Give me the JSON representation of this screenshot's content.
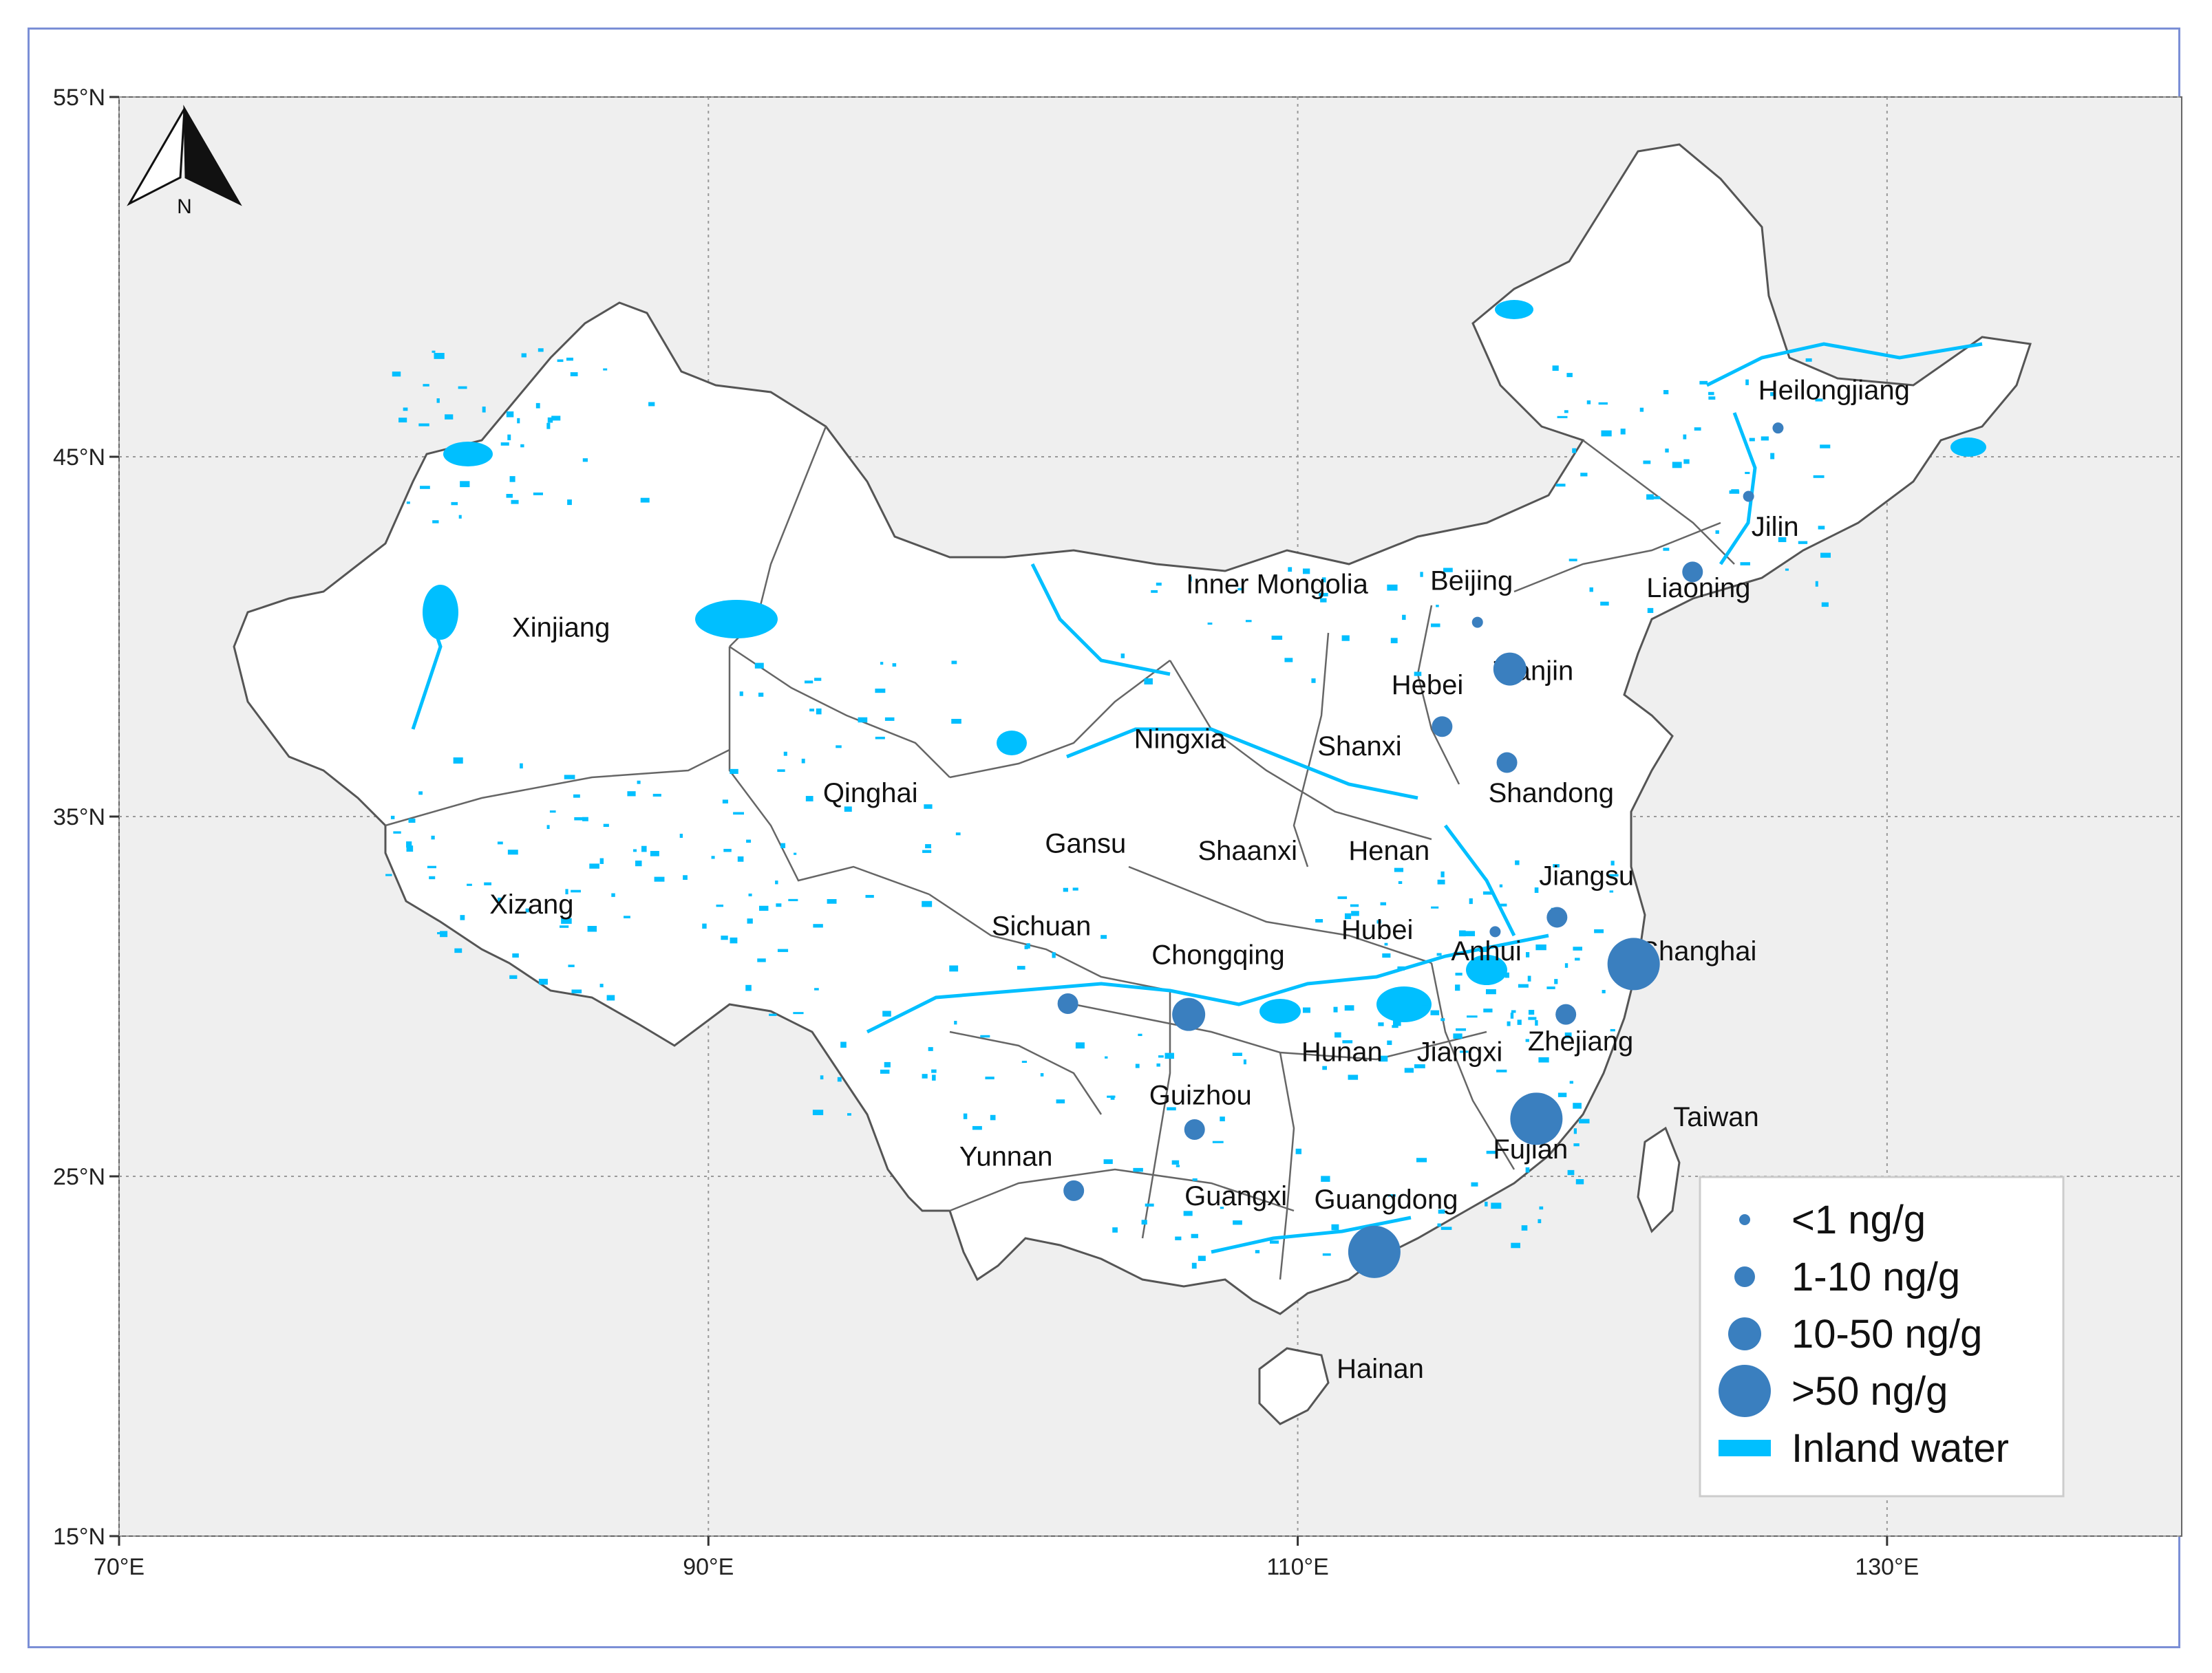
{
  "map": {
    "lon_range": [
      70,
      140
    ],
    "lat_range": [
      15,
      55
    ],
    "lon_ticks": [
      {
        "value": 70,
        "label": "70°E"
      },
      {
        "value": 90,
        "label": "90°E"
      },
      {
        "value": 110,
        "label": "110°E"
      },
      {
        "value": 130,
        "label": "130°E"
      }
    ],
    "lat_ticks": [
      {
        "value": 15,
        "label": "15°N"
      },
      {
        "value": 25,
        "label": "25°N"
      },
      {
        "value": 35,
        "label": "35°N"
      },
      {
        "value": 45,
        "label": "45°N"
      },
      {
        "value": 55,
        "label": "55°N"
      }
    ],
    "north_arrow_label": "N",
    "colors": {
      "background": "#efefef",
      "land": "#ffffff",
      "border": "#555555",
      "water": "#00bfff",
      "marker": "#3a7fbf"
    },
    "provinces": [
      {
        "name": "Xinjiang",
        "lon": 85.0,
        "lat": 40.0
      },
      {
        "name": "Xizang",
        "lon": 84.0,
        "lat": 32.3
      },
      {
        "name": "Qinghai",
        "lon": 95.5,
        "lat": 35.4
      },
      {
        "name": "Inner Mongolia",
        "lon": 109.3,
        "lat": 41.2
      },
      {
        "name": "Gansu",
        "lon": 102.8,
        "lat": 34.0
      },
      {
        "name": "Ningxia",
        "lon": 106.0,
        "lat": 36.9
      },
      {
        "name": "Shaanxi",
        "lon": 108.3,
        "lat": 33.8
      },
      {
        "name": "Shanxi",
        "lon": 112.1,
        "lat": 36.7
      },
      {
        "name": "Henan",
        "lon": 113.1,
        "lat": 33.8
      },
      {
        "name": "Hebei",
        "lon": 114.4,
        "lat": 38.4
      },
      {
        "name": "Beijing",
        "lon": 115.9,
        "lat": 41.3
      },
      {
        "name": "Tianjin",
        "lon": 118.0,
        "lat": 38.8
      },
      {
        "name": "Shandong",
        "lon": 118.6,
        "lat": 35.4
      },
      {
        "name": "Liaoning",
        "lon": 123.6,
        "lat": 41.1
      },
      {
        "name": "Jilin",
        "lon": 126.2,
        "lat": 42.8
      },
      {
        "name": "Heilongjiang",
        "lon": 128.2,
        "lat": 46.6
      },
      {
        "name": "Jiangsu",
        "lon": 119.8,
        "lat": 33.1
      },
      {
        "name": "Shanghai",
        "lon": 123.6,
        "lat": 31.0
      },
      {
        "name": "Anhui",
        "lon": 116.4,
        "lat": 31.0
      },
      {
        "name": "Hubei",
        "lon": 112.7,
        "lat": 31.6
      },
      {
        "name": "Sichuan",
        "lon": 101.3,
        "lat": 31.7
      },
      {
        "name": "Chongqing",
        "lon": 107.3,
        "lat": 30.9
      },
      {
        "name": "Hunan",
        "lon": 111.5,
        "lat": 28.2
      },
      {
        "name": "Jiangxi",
        "lon": 115.5,
        "lat": 28.2
      },
      {
        "name": "Zhejiang",
        "lon": 119.6,
        "lat": 28.5
      },
      {
        "name": "Guizhou",
        "lon": 106.7,
        "lat": 27.0
      },
      {
        "name": "Taiwan",
        "lon": 124.2,
        "lat": 26.4
      },
      {
        "name": "Fujian",
        "lon": 117.9,
        "lat": 25.5
      },
      {
        "name": "Yunnan",
        "lon": 100.1,
        "lat": 25.3
      },
      {
        "name": "Guangxi",
        "lon": 107.9,
        "lat": 24.2
      },
      {
        "name": "Guangdong",
        "lon": 113.0,
        "lat": 24.1
      },
      {
        "name": "Hainan",
        "lon": 112.8,
        "lat": 19.4
      }
    ],
    "sites": [
      {
        "lon": 126.3,
        "lat": 45.8,
        "level": "<1 ng/g"
      },
      {
        "lon": 125.3,
        "lat": 43.9,
        "level": "<1 ng/g"
      },
      {
        "lon": 123.4,
        "lat": 41.8,
        "level": "1-10 ng/g"
      },
      {
        "lon": 116.1,
        "lat": 40.4,
        "level": "<1 ng/g"
      },
      {
        "lon": 117.2,
        "lat": 39.1,
        "level": "10-50 ng/g"
      },
      {
        "lon": 114.9,
        "lat": 37.5,
        "level": "1-10 ng/g"
      },
      {
        "lon": 117.1,
        "lat": 36.5,
        "level": "1-10 ng/g"
      },
      {
        "lon": 118.8,
        "lat": 32.2,
        "level": "1-10 ng/g"
      },
      {
        "lon": 116.7,
        "lat": 31.8,
        "level": "<1 ng/g"
      },
      {
        "lon": 121.4,
        "lat": 30.9,
        "level": ">50 ng/g"
      },
      {
        "lon": 119.1,
        "lat": 29.5,
        "level": "1-10 ng/g"
      },
      {
        "lon": 102.2,
        "lat": 29.8,
        "level": "1-10 ng/g"
      },
      {
        "lon": 106.3,
        "lat": 29.5,
        "level": "10-50 ng/g"
      },
      {
        "lon": 106.5,
        "lat": 26.3,
        "level": "1-10 ng/g"
      },
      {
        "lon": 102.4,
        "lat": 24.6,
        "level": "1-10 ng/g"
      },
      {
        "lon": 118.1,
        "lat": 26.6,
        "level": ">50 ng/g"
      },
      {
        "lon": 112.6,
        "lat": 22.9,
        "level": ">50 ng/g"
      }
    ]
  },
  "legend": {
    "items": [
      {
        "label": "<1 ng/g",
        "type": "circle",
        "size": 1
      },
      {
        "label": "1-10 ng/g",
        "type": "circle",
        "size": 2
      },
      {
        "label": "10-50 ng/g",
        "type": "circle",
        "size": 3
      },
      {
        "label": ">50 ng/g",
        "type": "circle",
        "size": 4
      },
      {
        "label": "Inland water",
        "type": "rect"
      }
    ]
  }
}
